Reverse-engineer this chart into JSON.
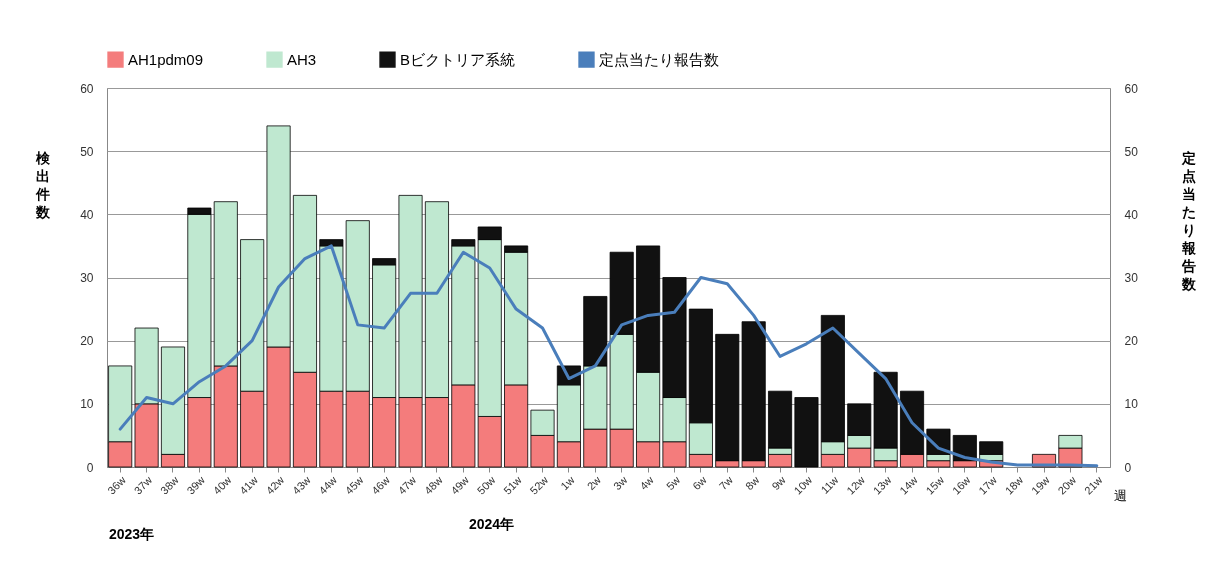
{
  "chart_data": {
    "type": "bar",
    "stacked": true,
    "categories": [
      "36w",
      "37w",
      "38w",
      "39w",
      "40w",
      "41w",
      "42w",
      "43w",
      "44w",
      "45w",
      "46w",
      "47w",
      "48w",
      "49w",
      "50w",
      "51w",
      "52w",
      "1w",
      "2w",
      "3w",
      "4w",
      "5w",
      "6w",
      "7w",
      "8w",
      "9w",
      "10w",
      "11w",
      "12w",
      "13w",
      "14w",
      "15w",
      "16w",
      "17w",
      "18w",
      "19w",
      "20w",
      "21w"
    ],
    "xlabel": "週",
    "ylabel": "検出件数",
    "y2label": "定点当たり報告数",
    "ylim": [
      0,
      60
    ],
    "yticks": [
      0,
      10,
      20,
      30,
      40,
      50,
      60
    ],
    "y2lim": [
      0,
      60
    ],
    "y2ticks": [
      0,
      10,
      20,
      30,
      40,
      50,
      60
    ],
    "grid": "y",
    "legend": "top",
    "annotations": [
      "2023年",
      "2024年"
    ],
    "series": [
      {
        "name": "AH1pdm09",
        "color": "#f47c7c",
        "values": [
          4,
          10,
          2,
          11,
          16,
          12,
          19,
          15,
          12,
          12,
          11,
          11,
          11,
          13,
          8,
          13,
          5,
          4,
          6,
          6,
          4,
          4,
          2,
          1,
          1,
          2,
          0,
          2,
          3,
          1,
          2,
          1,
          1,
          1,
          0,
          2,
          3,
          0
        ]
      },
      {
        "name": "AH3",
        "color": "#bfe8d0",
        "values": [
          12,
          12,
          17,
          29,
          26,
          24,
          35,
          28,
          23,
          27,
          21,
          32,
          31,
          22,
          28,
          21,
          4,
          9,
          10,
          15,
          11,
          7,
          5,
          0,
          0,
          1,
          0,
          2,
          2,
          2,
          0,
          1,
          0,
          1,
          0,
          0,
          2,
          0
        ]
      },
      {
        "name": "Bビクトリア系統",
        "color": "#111111",
        "values": [
          0,
          0,
          0,
          1,
          0,
          0,
          0,
          0,
          1,
          0,
          1,
          0,
          0,
          1,
          2,
          1,
          0,
          3,
          11,
          13,
          20,
          19,
          18,
          20,
          22,
          9,
          11,
          20,
          5,
          12,
          10,
          4,
          4,
          2,
          0,
          0,
          0,
          0
        ]
      },
      {
        "name": "定点当たり報告数",
        "type": "line",
        "axis": "y2",
        "color": "#4a7ebb",
        "values": [
          6,
          11,
          10,
          13.5,
          16,
          20,
          28.5,
          33,
          35,
          22.5,
          22,
          27.5,
          27.5,
          34,
          31.5,
          25,
          22,
          14,
          16,
          22.5,
          24,
          24.5,
          30,
          29,
          24,
          17.5,
          19.5,
          22,
          18,
          14,
          7,
          3,
          1.5,
          0.8,
          0.3,
          0.3,
          0.3,
          0.2
        ]
      }
    ]
  }
}
